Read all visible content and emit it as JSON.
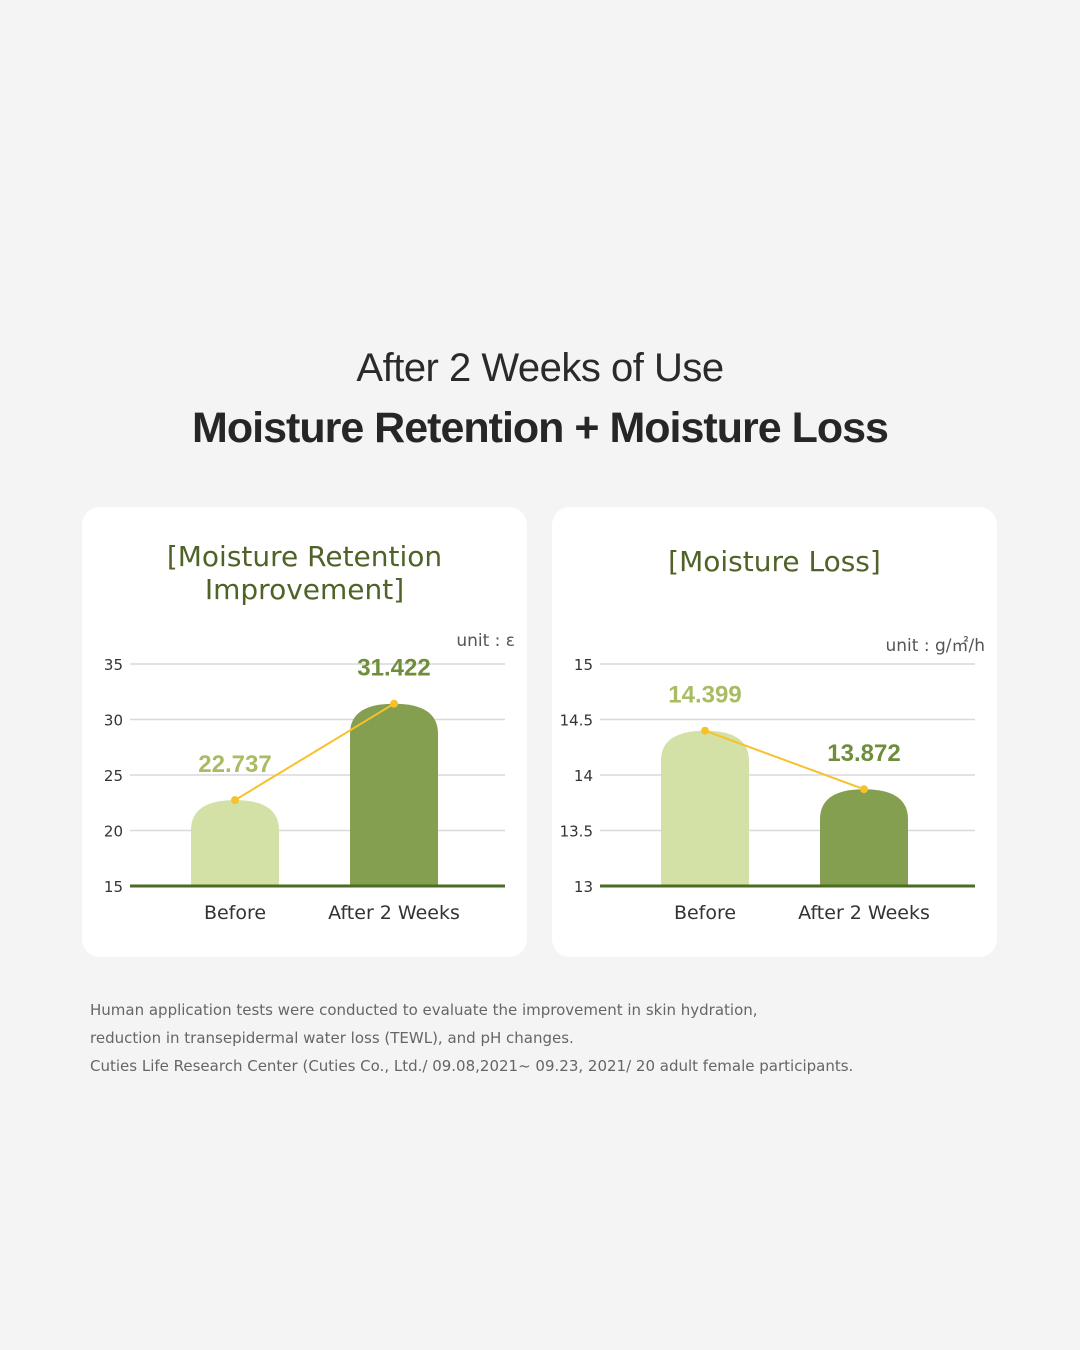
{
  "header": {
    "subtitle": "After 2 Weeks of Use",
    "title": "Moisture Retention + Moisture Loss"
  },
  "colors": {
    "before_bar": "#d3e0a6",
    "after_bar": "#849f4f",
    "before_label": "#a8bd63",
    "after_label": "#6f8d3b",
    "trend_line": "#f7c12c",
    "baseline": "#4c6b24",
    "grid": "#d9d9d9"
  },
  "chart_data": [
    {
      "type": "bar",
      "title_lines": [
        "[Moisture Retention",
        "Improvement]"
      ],
      "unit": "unit : ε",
      "categories": [
        "Before",
        "After 2 Weeks"
      ],
      "values": [
        22.737,
        31.422
      ],
      "value_labels": [
        "22.737",
        "31.422"
      ],
      "ylim": [
        15,
        35
      ],
      "yticks": [
        35,
        30,
        25,
        20,
        15
      ],
      "ytick_labels": [
        "35",
        "30",
        "25",
        "20",
        "15"
      ],
      "grid": true,
      "trend_line": true
    },
    {
      "type": "bar",
      "title_lines": [
        "[Moisture Loss]"
      ],
      "unit": "unit : g/㎡/h",
      "categories": [
        "Before",
        "After 2 Weeks"
      ],
      "values": [
        14.399,
        13.872
      ],
      "value_labels": [
        "14.399",
        "13.872"
      ],
      "ylim": [
        13,
        15
      ],
      "yticks": [
        15,
        14.5,
        14,
        13.5,
        13
      ],
      "ytick_labels": [
        "15",
        "14.5",
        "14",
        "13.5",
        "13"
      ],
      "grid": true,
      "trend_line": true
    }
  ],
  "footnote": {
    "lines": [
      "Human application tests were conducted to evaluate the improvement in skin hydration,",
      "reduction in transepidermal water loss (TEWL), and pH changes.",
      "Cuties Life Research Center (Cuties Co., Ltd./ 09.08,2021~ 09.23, 2021/ 20 adult female participants."
    ]
  }
}
